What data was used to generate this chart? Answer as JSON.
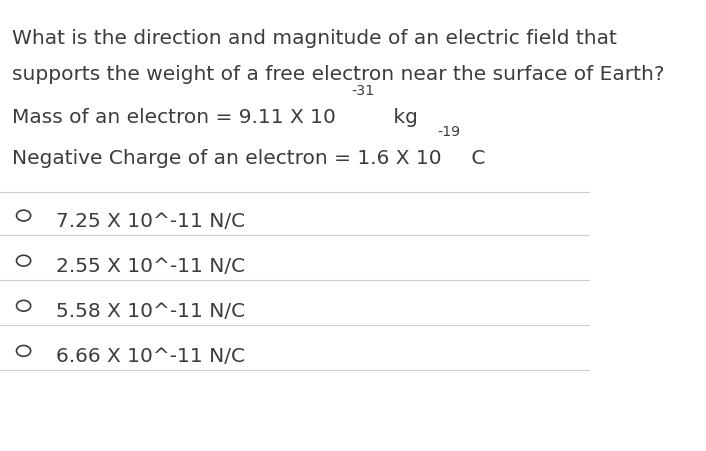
{
  "bg_color": "#ffffff",
  "text_color": "#3c3c3c",
  "question_line1": "What is the direction and magnitude of an electric field that",
  "question_line2": "supports the weight of a free electron near the surface of Earth?",
  "info_line1_prefix": "Mass of an electron = 9.11 X 10",
  "info_line1_exp": "-31",
  "info_line1_suffix": " kg",
  "info_line2_prefix": "Negative Charge of an electron = 1.6 X 10",
  "info_line2_exp": "-19",
  "info_line2_suffix": " C",
  "options": [
    "7.25 X 10^-11 N/C",
    "2.55 X 10^-11 N/C",
    "5.58 X 10^-11 N/C",
    "6.66 X 10^-11 N/C"
  ],
  "separator_color": "#cccccc",
  "font_size_question": 14.5,
  "font_size_info": 14.5,
  "font_size_option": 14.5,
  "font_family": "sans-serif"
}
